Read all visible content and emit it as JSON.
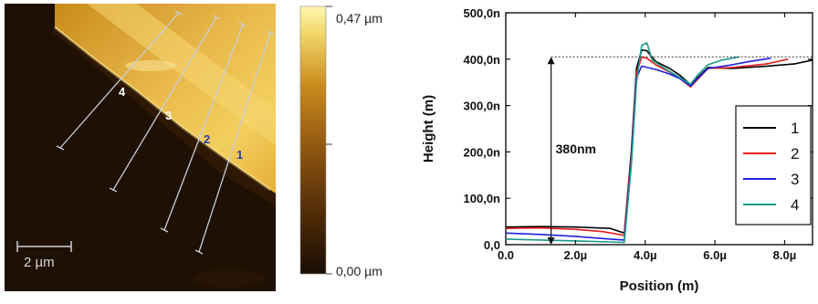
{
  "afm": {
    "scalebar_label": "2 µm",
    "line_labels": [
      "1",
      "2",
      "3",
      "4"
    ],
    "line_label_colors": [
      "#2b3da8",
      "#2b3da8",
      "#ffffff",
      "#ffffff"
    ]
  },
  "colorbar": {
    "max_label": "0,47 µm",
    "min_label": "0,00 µm",
    "colors": [
      "#1a0d03",
      "#4a2806",
      "#8a5210",
      "#c98a1c",
      "#f2d76a",
      "#fff6b0"
    ]
  },
  "chart_data": {
    "type": "line",
    "title": "",
    "xlabel": "Position (m)",
    "ylabel": "Height (m)",
    "xlim": [
      0,
      8.8
    ],
    "ylim": [
      0,
      500
    ],
    "x_unit": "µm",
    "y_unit": "nm",
    "xticks": [
      0,
      2,
      4,
      6,
      8
    ],
    "xtick_labels": [
      "0.0",
      "2.0µ",
      "4.0µ",
      "6.0µ",
      "8.0µ"
    ],
    "yticks": [
      0,
      100,
      200,
      300,
      400,
      500
    ],
    "ytick_labels": [
      "0,0",
      "100,0n",
      "200,0n",
      "300,0n",
      "400,0n",
      "500,0n"
    ],
    "grid": false,
    "legend_position": "right",
    "series": [
      {
        "name": "1",
        "color": "#000000",
        "x": [
          0,
          1.0,
          2.0,
          3.0,
          3.4,
          3.6,
          3.75,
          3.9,
          4.05,
          4.3,
          4.7,
          5.0,
          5.3,
          5.5,
          5.8,
          6.5,
          7.5,
          8.3,
          8.8
        ],
        "y": [
          38,
          39,
          38,
          35,
          25,
          200,
          380,
          420,
          418,
          395,
          380,
          365,
          345,
          360,
          382,
          380,
          385,
          390,
          398
        ]
      },
      {
        "name": "2",
        "color": "#e81c1c",
        "x": [
          0,
          1.0,
          2.0,
          2.8,
          3.4,
          3.6,
          3.75,
          3.9,
          4.05,
          4.3,
          4.7,
          5.0,
          5.3,
          5.5,
          5.8,
          6.5,
          7.5,
          8.1
        ],
        "y": [
          35,
          36,
          33,
          28,
          20,
          190,
          370,
          405,
          402,
          388,
          372,
          358,
          340,
          356,
          380,
          382,
          390,
          400
        ]
      },
      {
        "name": "3",
        "color": "#2020e0",
        "x": [
          0,
          1.0,
          2.0,
          3.0,
          3.4,
          3.6,
          3.75,
          3.9,
          4.05,
          4.3,
          4.7,
          5.0,
          5.3,
          5.5,
          5.8,
          6.5,
          7.0,
          7.6
        ],
        "y": [
          25,
          22,
          18,
          12,
          10,
          180,
          360,
          385,
          382,
          378,
          368,
          358,
          342,
          358,
          380,
          388,
          395,
          402
        ]
      },
      {
        "name": "4",
        "color": "#1a9a8a",
        "x": [
          0,
          1.0,
          2.0,
          3.0,
          3.4,
          3.6,
          3.75,
          3.9,
          4.05,
          4.2,
          4.6,
          5.0,
          5.3,
          5.5,
          5.8,
          6.2,
          6.7
        ],
        "y": [
          12,
          10,
          8,
          6,
          5,
          170,
          350,
          430,
          435,
          398,
          378,
          360,
          346,
          365,
          388,
          398,
          405
        ]
      }
    ],
    "annotation": {
      "text": "380nm",
      "x": 1.3,
      "y_from": 0,
      "y_to": 405
    }
  }
}
